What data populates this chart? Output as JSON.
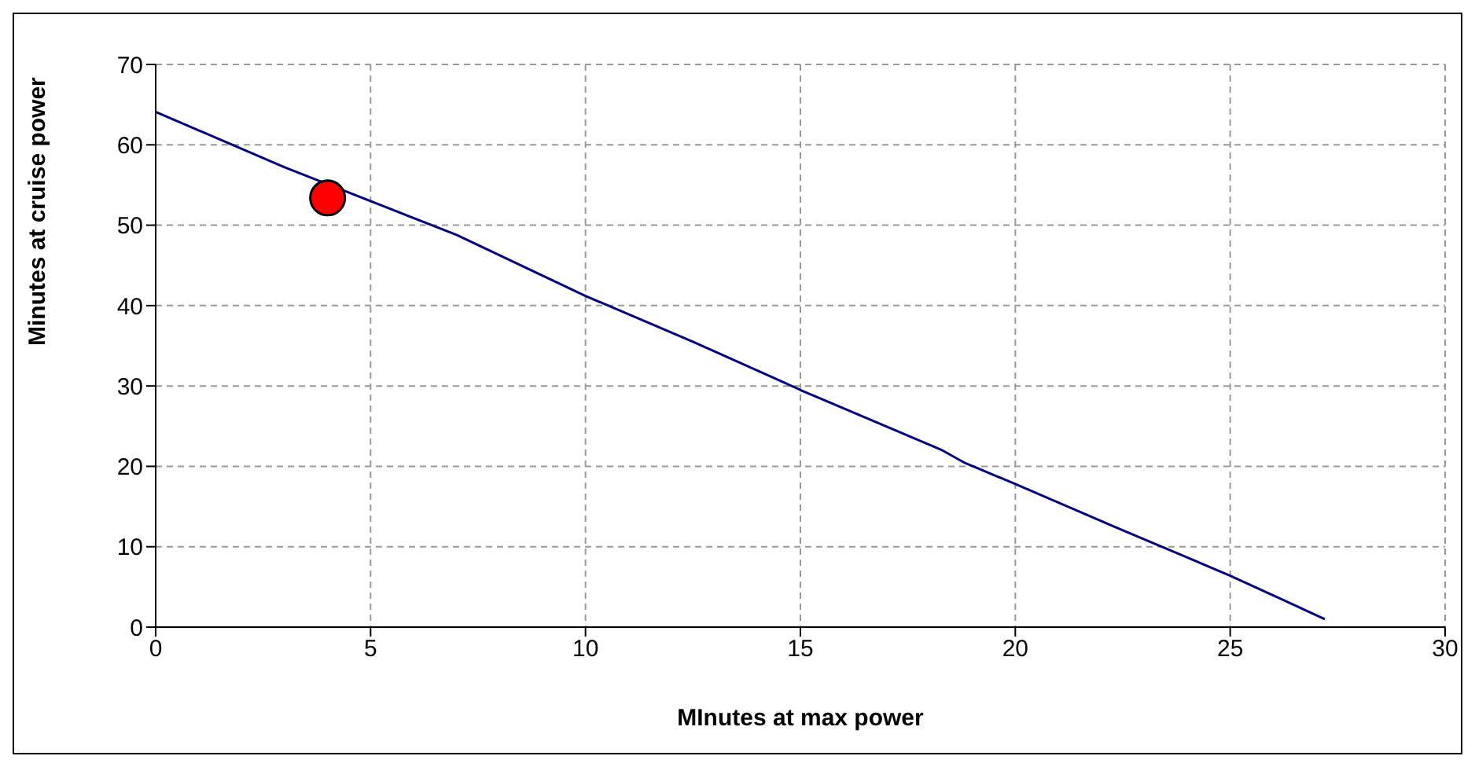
{
  "chart_data": {
    "type": "line",
    "xlabel": "MInutes at max power",
    "ylabel": "Minutes at cruise power",
    "xlim": [
      0,
      30
    ],
    "xticks": [
      0,
      5,
      10,
      15,
      20,
      25,
      30
    ],
    "ylim": [
      0,
      70
    ],
    "yticks": [
      0,
      10,
      20,
      30,
      40,
      50,
      60,
      70
    ],
    "grid": true,
    "series": [
      {
        "color": "#000080",
        "marker": "none",
        "x": [
          0,
          3,
          5,
          7,
          10,
          12.5,
          14.3,
          15,
          18.3,
          18.8,
          20,
          22.3,
          25,
          25.9,
          27.2
        ],
        "values": [
          64.1,
          57.2,
          53,
          48.8,
          41.2,
          35.5,
          31.2,
          29.5,
          22,
          20.5,
          17.8,
          12.5,
          6.4,
          4.2,
          1
        ]
      },
      {
        "type": "scatter",
        "color": "#ff0000",
        "marker": "circle",
        "x": [
          4
        ],
        "values": [
          53.4
        ]
      }
    ]
  }
}
